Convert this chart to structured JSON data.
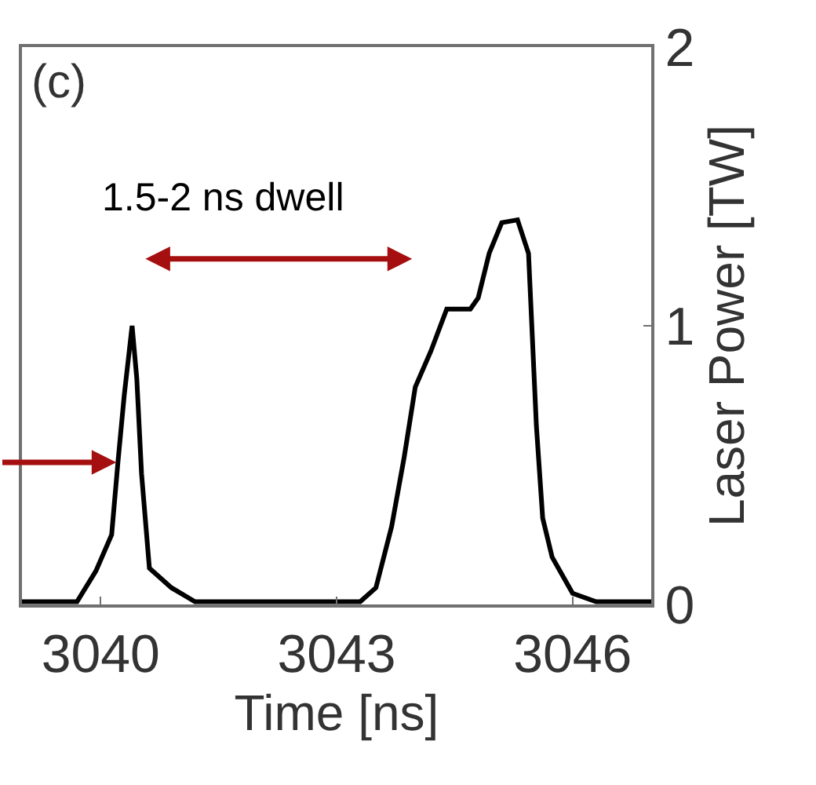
{
  "chart_data": {
    "type": "line",
    "xlabel": "Time [ns]",
    "ylabel": "Laser Power [TW]",
    "x": [
      3039.0,
      3039.7,
      3039.94,
      3040.14,
      3040.22,
      3040.3,
      3040.4,
      3040.46,
      3040.52,
      3040.62,
      3040.9,
      3041.2,
      3043.3,
      3043.5,
      3043.7,
      3043.86,
      3044.0,
      3044.2,
      3044.4,
      3044.7,
      3044.8,
      3044.94,
      3045.1,
      3045.3,
      3045.44,
      3045.54,
      3045.62,
      3045.74,
      3046.0,
      3046.3,
      3047.0
    ],
    "series": [
      {
        "color": "#000000",
        "values": [
          0.01,
          0.01,
          0.12,
          0.25,
          0.51,
          0.75,
          1.0,
          0.81,
          0.47,
          0.13,
          0.06,
          0.01,
          0.01,
          0.06,
          0.28,
          0.53,
          0.78,
          0.91,
          1.06,
          1.06,
          1.1,
          1.26,
          1.37,
          1.38,
          1.26,
          0.64,
          0.31,
          0.17,
          0.04,
          0.01,
          0.01
        ]
      }
    ],
    "xlim": [
      3039,
      3047
    ],
    "xticks": [
      3040,
      3043,
      3046
    ],
    "ylim": [
      0,
      2
    ],
    "yticks": [
      0,
      1,
      2
    ],
    "annotations": [
      "(c)",
      "1.5-2 ns dwell"
    ],
    "marker": "none",
    "line_style": "solid"
  }
}
